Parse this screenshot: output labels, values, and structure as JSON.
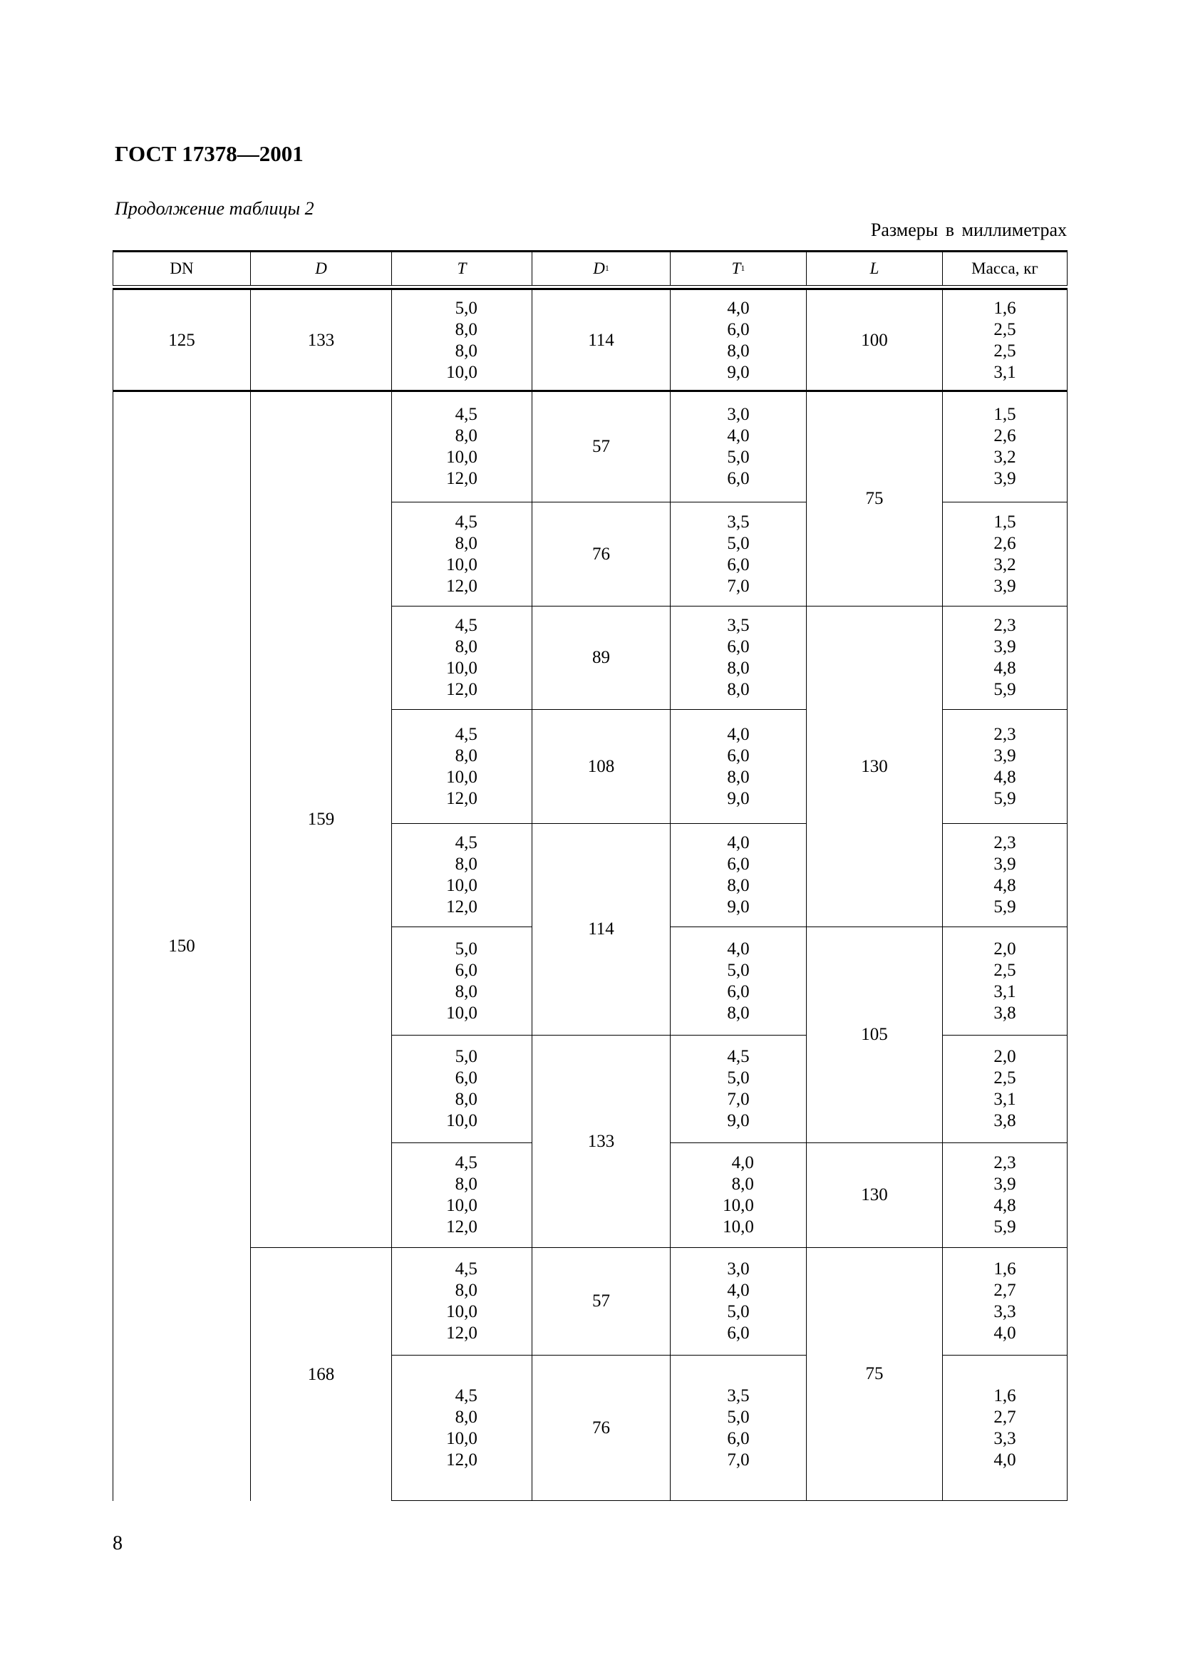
{
  "document": {
    "title": "ГОСТ 17378—2001",
    "caption": "Продолжение таблицы 2",
    "units": "Размеры в миллиметрах",
    "page_number": "8"
  },
  "table": {
    "headers": [
      {
        "main": "DN",
        "sub": "",
        "italic": false
      },
      {
        "main": "D",
        "sub": "",
        "italic": true
      },
      {
        "main": "T",
        "sub": "",
        "italic": true
      },
      {
        "main": "D",
        "sub": "1",
        "italic": true
      },
      {
        "main": "T",
        "sub": "1",
        "italic": true
      },
      {
        "main": "L",
        "sub": "",
        "italic": true
      },
      {
        "main": "Масса, кг",
        "sub": "",
        "italic": false
      }
    ],
    "first_row": {
      "DN": "125",
      "D": "133",
      "T": [
        "5,0",
        "8,0",
        "8,0",
        "10,0"
      ],
      "D1": "114",
      "T1": [
        "4,0",
        "6,0",
        "8,0",
        "9,0"
      ],
      "L": "100",
      "mass": [
        "1,6",
        "2,5",
        "2,5",
        "3,1"
      ]
    },
    "group_150": {
      "DN": "150",
      "D": [
        "159",
        "168"
      ],
      "T": [
        [
          "4,5",
          "8,0",
          "10,0",
          "12,0"
        ],
        [
          "4,5",
          "8,0",
          "10,0",
          "12,0"
        ],
        [
          "4,5",
          "8,0",
          "10,0",
          "12,0"
        ],
        [
          "4,5",
          "8,0",
          "10,0",
          "12,0"
        ],
        [
          "4,5",
          "8,0",
          "10,0",
          "12,0"
        ],
        [
          "5,0",
          "6,0",
          "8,0",
          "10,0"
        ],
        [
          "5,0",
          "6,0",
          "8,0",
          "10,0"
        ],
        [
          "4,5",
          "8,0",
          "10,0",
          "12,0"
        ],
        [
          "4,5",
          "8,0",
          "10,0",
          "12,0"
        ],
        [
          "4,5",
          "8,0",
          "10,0",
          "12,0"
        ]
      ],
      "D1": [
        "57",
        "76",
        "89",
        "108",
        "114",
        "133",
        "57",
        "76"
      ],
      "T1": [
        [
          "3,0",
          "4,0",
          "5,0",
          "6,0"
        ],
        [
          "3,5",
          "5,0",
          "6,0",
          "7,0"
        ],
        [
          "3,5",
          "6,0",
          "8,0",
          "8,0"
        ],
        [
          "4,0",
          "6,0",
          "8,0",
          "9,0"
        ],
        [
          "4,0",
          "6,0",
          "8,0",
          "9,0"
        ],
        [
          "4,0",
          "5,0",
          "6,0",
          "8,0"
        ],
        [
          "4,5",
          "5,0",
          "7,0",
          "9,0"
        ],
        [
          "4,0",
          "8,0",
          "10,0",
          "10,0"
        ],
        [
          "3,0",
          "4,0",
          "5,0",
          "6,0"
        ],
        [
          "3,5",
          "5,0",
          "6,0",
          "7,0"
        ]
      ],
      "L": [
        "75",
        "130",
        "105",
        "130",
        "75"
      ],
      "mass": [
        [
          "1,5",
          "2,6",
          "3,2",
          "3,9"
        ],
        [
          "1,5",
          "2,6",
          "3,2",
          "3,9"
        ],
        [
          "2,3",
          "3,9",
          "4,8",
          "5,9"
        ],
        [
          "2,3",
          "3,9",
          "4,8",
          "5,9"
        ],
        [
          "2,3",
          "3,9",
          "4,8",
          "5,9"
        ],
        [
          "2,0",
          "2,5",
          "3,1",
          "3,8"
        ],
        [
          "2,0",
          "2,5",
          "3,1",
          "3,8"
        ],
        [
          "2,3",
          "3,9",
          "4,8",
          "5,9"
        ],
        [
          "1,6",
          "2,7",
          "3,3",
          "4,0"
        ],
        [
          "1,6",
          "2,7",
          "3,3",
          "4,0"
        ]
      ]
    }
  }
}
